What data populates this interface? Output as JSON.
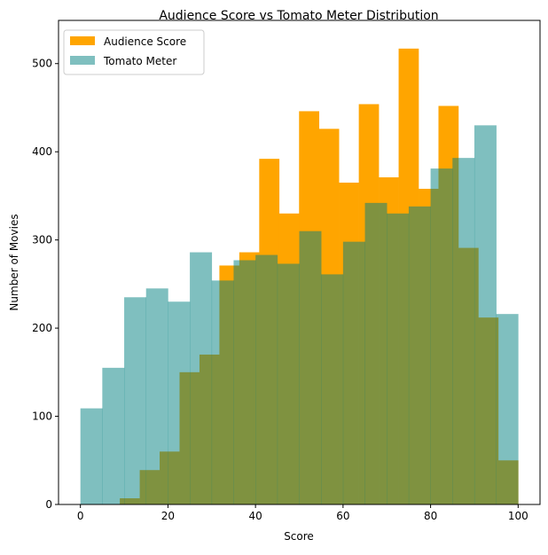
{
  "chart_data": {
    "type": "histogram",
    "title": "Audience Score vs Tomato Meter Distribution",
    "xlabel": "Score",
    "ylabel": "Number of Movies",
    "xlim": [
      -5,
      105
    ],
    "ylim": [
      0,
      549
    ],
    "xticks": [
      0,
      20,
      40,
      60,
      80,
      100
    ],
    "yticks": [
      0,
      100,
      200,
      300,
      400,
      500
    ],
    "grid": false,
    "legend_placement": "top-left",
    "series": [
      {
        "name": "Audience Score",
        "color": "#FFA500",
        "opacity": 1.0,
        "bin_range": [
          9,
          100
        ],
        "bins": 20,
        "values": [
          7,
          39,
          60,
          150,
          170,
          271,
          286,
          392,
          330,
          446,
          426,
          365,
          454,
          371,
          517,
          358,
          452,
          291,
          212,
          50
        ]
      },
      {
        "name": "Tomato Meter",
        "color": "#008080",
        "opacity": 0.5,
        "bin_range": [
          0,
          100
        ],
        "bins": 20,
        "values": [
          109,
          155,
          235,
          245,
          230,
          286,
          254,
          277,
          283,
          273,
          310,
          261,
          298,
          342,
          330,
          338,
          381,
          393,
          430,
          216
        ]
      }
    ]
  }
}
